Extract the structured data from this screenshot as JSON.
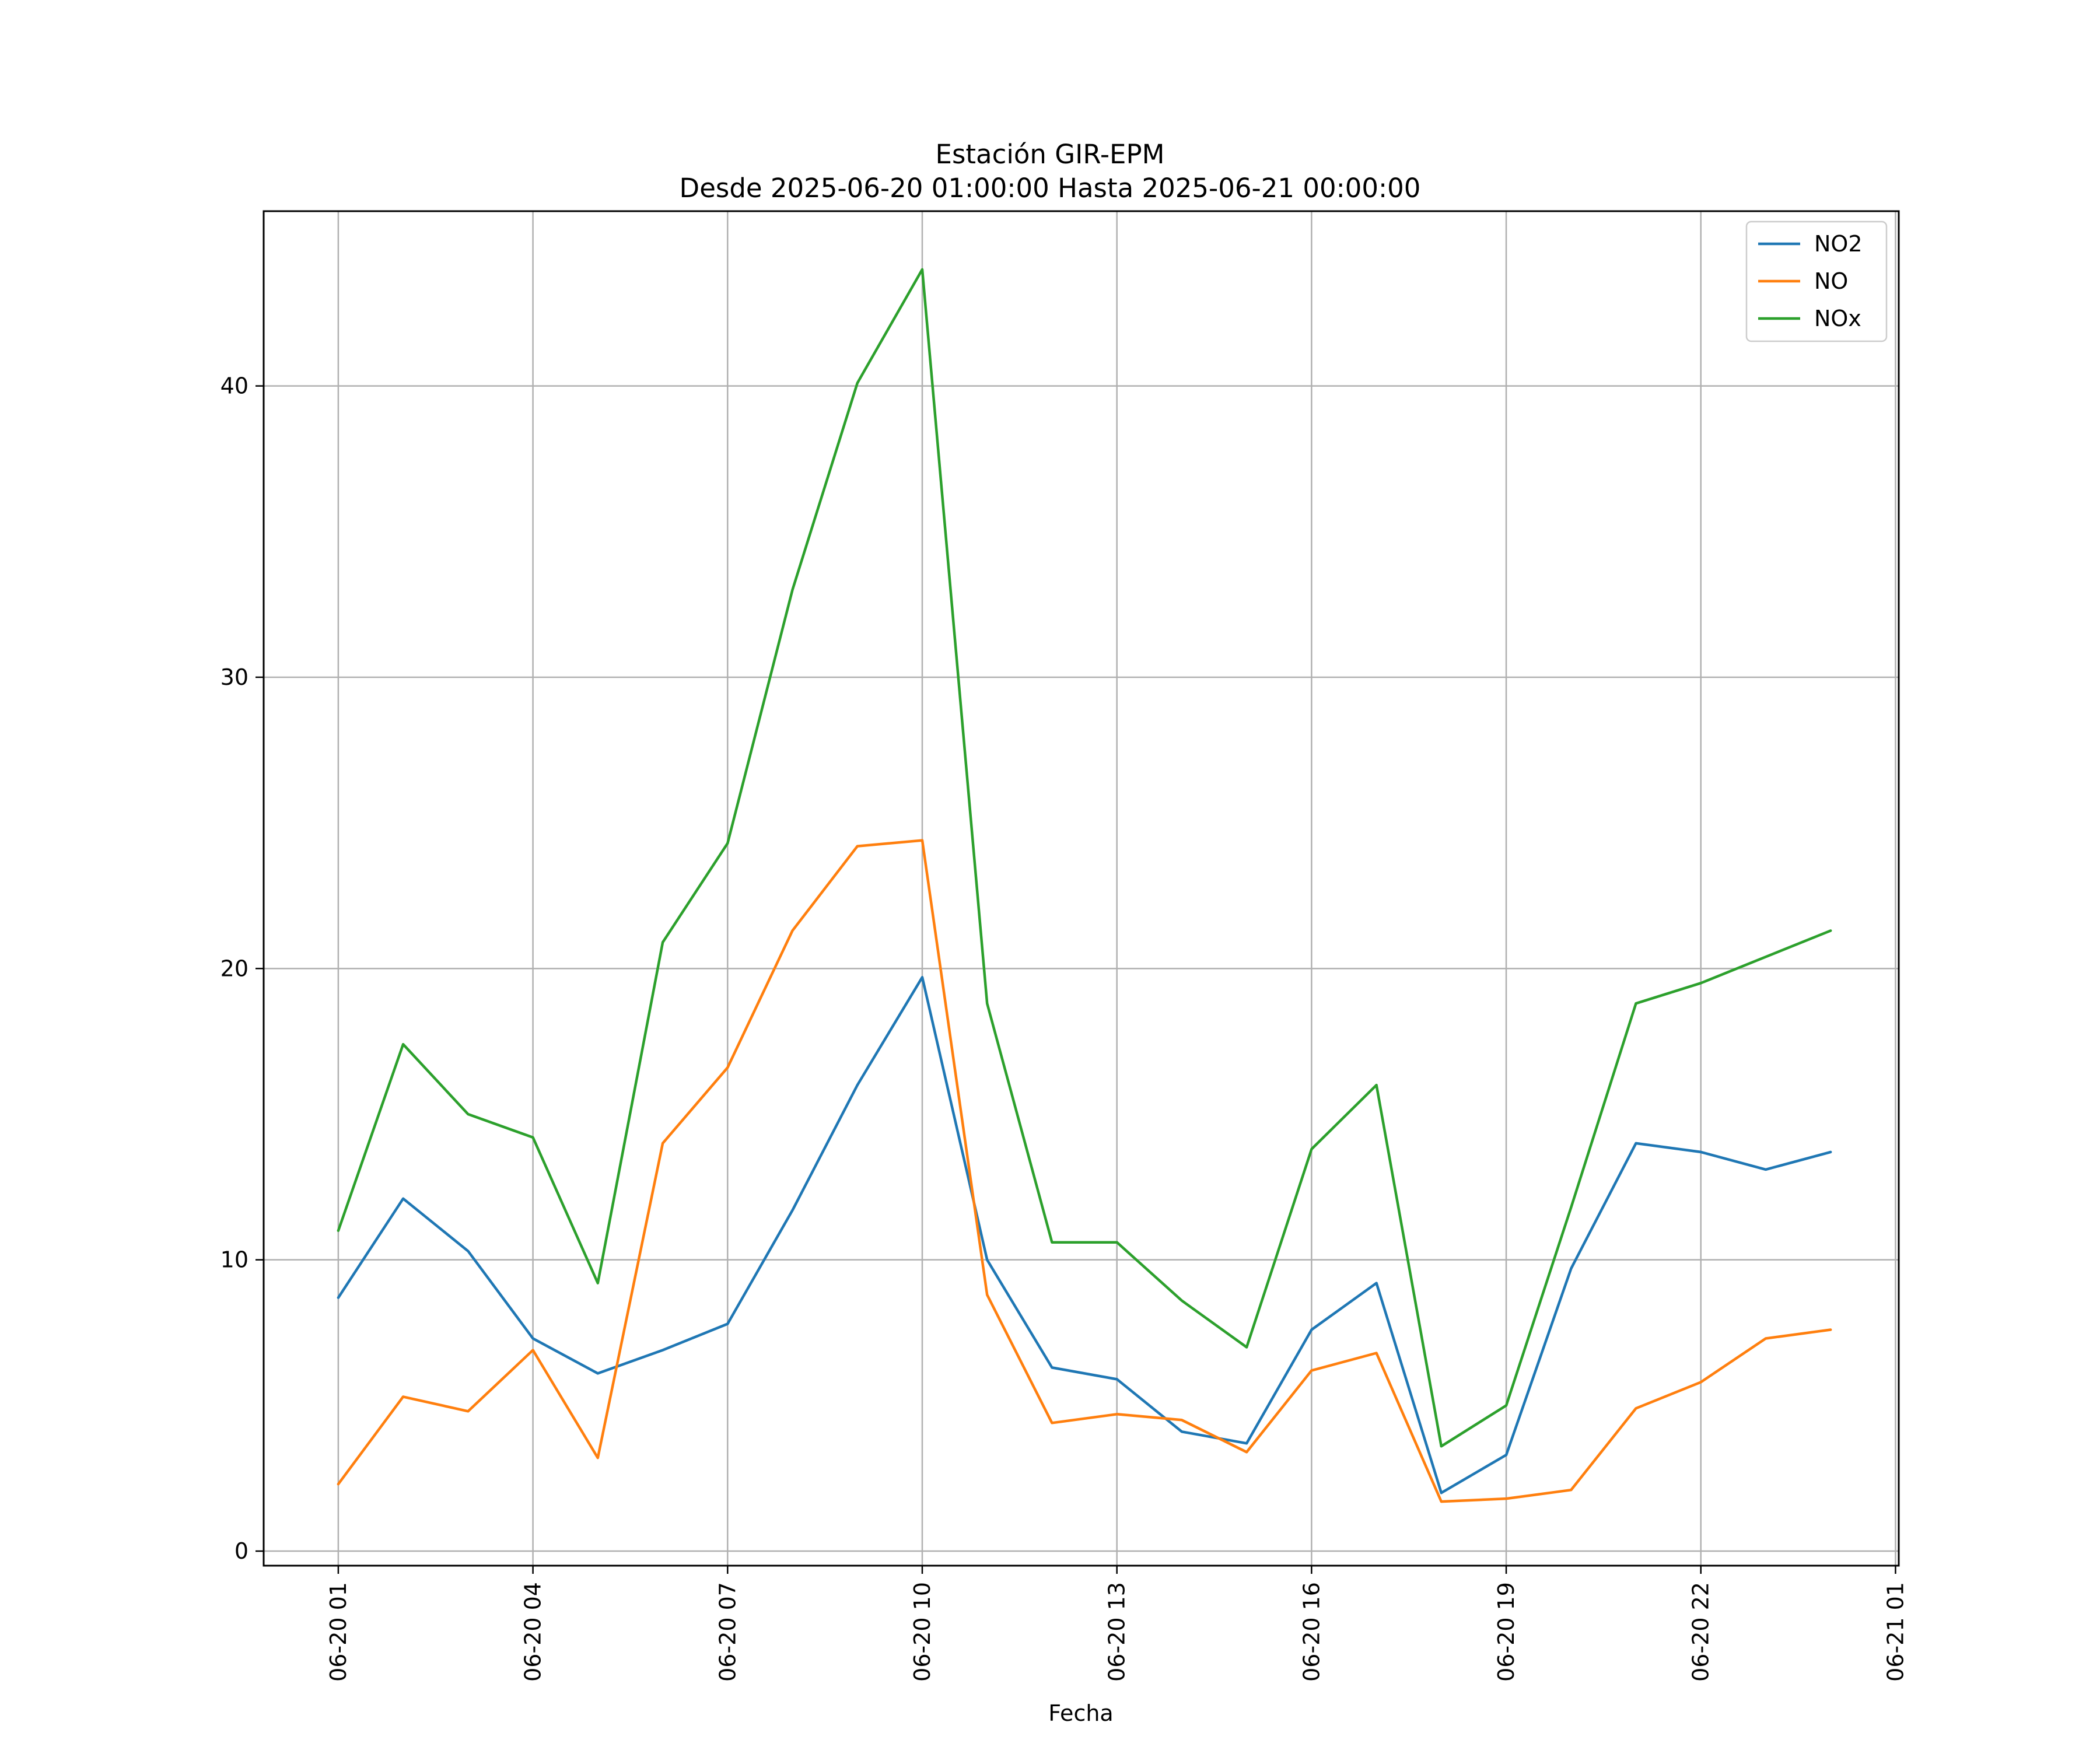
{
  "chart_data": {
    "type": "line",
    "title": "Estación GIR-EPM",
    "subtitle": "Desde 2025-06-20 01:00:00 Hasta 2025-06-21 00:00:00",
    "xlabel": "Fecha",
    "ylabel": "",
    "grid": true,
    "legend_position": "top-right",
    "x_hours": [
      1,
      2,
      3,
      4,
      5,
      6,
      7,
      8,
      9,
      10,
      11,
      12,
      13,
      14,
      15,
      16,
      17,
      18,
      19,
      20,
      21,
      22,
      23,
      24
    ],
    "xlim_hours": [
      -0.15,
      25.05
    ],
    "ylim": [
      -0.5,
      46
    ],
    "x_ticks": [
      {
        "hour": 1,
        "label": "06-20 01"
      },
      {
        "hour": 4,
        "label": "06-20 04"
      },
      {
        "hour": 7,
        "label": "06-20 07"
      },
      {
        "hour": 10,
        "label": "06-20 10"
      },
      {
        "hour": 13,
        "label": "06-20 13"
      },
      {
        "hour": 16,
        "label": "06-20 16"
      },
      {
        "hour": 19,
        "label": "06-20 19"
      },
      {
        "hour": 22,
        "label": "06-20 22"
      },
      {
        "hour": 25,
        "label": "06-21 01"
      }
    ],
    "y_ticks": [
      {
        "value": 0,
        "label": "0"
      },
      {
        "value": 10,
        "label": "10"
      },
      {
        "value": 20,
        "label": "20"
      },
      {
        "value": 30,
        "label": "30"
      },
      {
        "value": 40,
        "label": "40"
      }
    ],
    "series": [
      {
        "name": "NO2",
        "color": "#1f77b4",
        "values": [
          8.7,
          12.1,
          10.3,
          7.3,
          6.1,
          6.9,
          7.8,
          11.7,
          16.0,
          19.7,
          10.0,
          6.3,
          5.9,
          4.1,
          3.7,
          7.6,
          9.2,
          2.0,
          3.3,
          9.7,
          14.0,
          13.7,
          13.1,
          13.7
        ]
      },
      {
        "name": "NO",
        "color": "#ff7f0e",
        "values": [
          2.3,
          5.3,
          4.8,
          6.9,
          3.2,
          14.0,
          16.6,
          21.3,
          24.2,
          24.4,
          8.8,
          4.4,
          4.7,
          4.5,
          3.4,
          6.2,
          6.8,
          1.7,
          1.8,
          2.1,
          4.9,
          5.8,
          7.3,
          7.6
        ]
      },
      {
        "name": "NOx",
        "color": "#2ca02c",
        "values": [
          11.0,
          17.4,
          15.0,
          14.2,
          9.2,
          20.9,
          24.3,
          33.0,
          40.1,
          44.0,
          18.8,
          10.6,
          10.6,
          8.6,
          7.0,
          13.8,
          16.0,
          3.6,
          5.0,
          11.8,
          18.8,
          19.5,
          20.4,
          21.3
        ]
      }
    ]
  }
}
